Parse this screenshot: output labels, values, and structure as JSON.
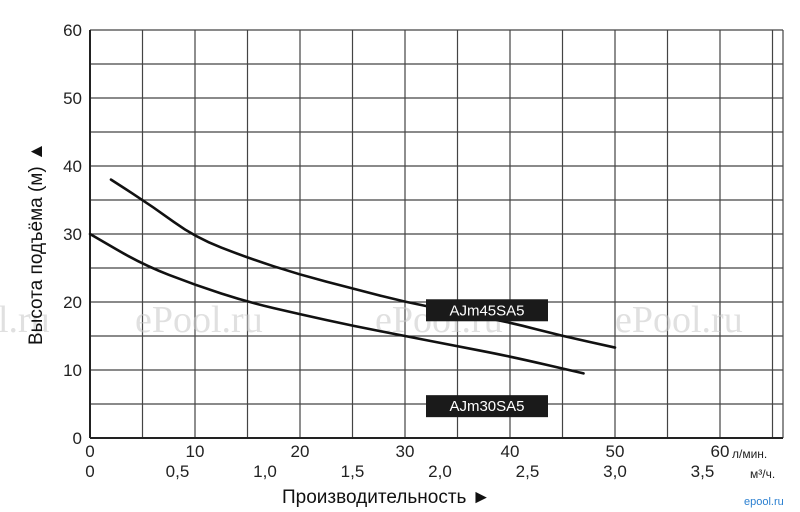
{
  "chart_data": {
    "type": "line",
    "ylabel": "Высота подъёма (м) ▲",
    "xlabel": "Производительность ►",
    "x_primary_unit": "л/мин.",
    "x_secondary_unit": "м³/ч.",
    "xlim": [
      0,
      66
    ],
    "ylim": [
      0,
      60
    ],
    "x_ticks": [
      "0",
      "10",
      "20",
      "30",
      "40",
      "50",
      "60"
    ],
    "x_secondary_ticks": [
      "0",
      "0,5",
      "1,0",
      "1,5",
      "2,0",
      "2,5",
      "3,0",
      "3,5"
    ],
    "y_ticks": [
      "0",
      "10",
      "20",
      "30",
      "40",
      "50",
      "60"
    ],
    "grid": true,
    "series": [
      {
        "name": "AJm45SA5",
        "x": [
          2,
          6,
          10,
          15,
          20,
          25,
          30,
          35,
          40,
          45,
          50
        ],
        "y": [
          38,
          34,
          29.5,
          26.5,
          24,
          22,
          20,
          18.5,
          17,
          15,
          13.3
        ]
      },
      {
        "name": "AJm30SA5",
        "x": [
          0,
          5,
          10,
          15,
          20,
          25,
          30,
          35,
          40,
          47
        ],
        "y": [
          30,
          25.5,
          22.5,
          20,
          18.2,
          16.5,
          15,
          13.5,
          12,
          9.5
        ]
      }
    ]
  },
  "watermark": {
    "left": "l.ru",
    "center_left": "ePool.ru",
    "center": "ePool.ru",
    "right": "ePool.ru",
    "corner_logo": "epool.ru"
  },
  "colors": {
    "grid": "#444444",
    "curve": "#111111",
    "label_bg": "#1a1a1a",
    "label_text": "#ffffff"
  }
}
